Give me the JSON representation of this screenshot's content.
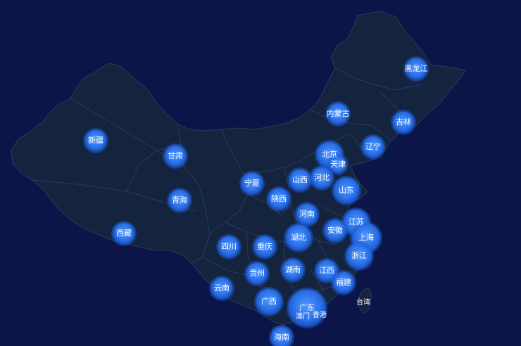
{
  "map": {
    "colors": {
      "background": "#0b1547",
      "land": "#14233e",
      "border": "#2b3b58",
      "bubble_outer": "#1d5fd8",
      "bubble_inner": "#4a90ff",
      "label": "#ffffff"
    },
    "provinces": [
      {
        "id": "heilongjiang",
        "name": "黑龙江",
        "size": "m"
      },
      {
        "id": "jilin",
        "name": "吉林",
        "size": "m"
      },
      {
        "id": "liaoning",
        "name": "辽宁",
        "size": "m"
      },
      {
        "id": "neimenggu",
        "name": "内蒙古",
        "size": "m"
      },
      {
        "id": "xinjiang",
        "name": "新疆",
        "size": "m"
      },
      {
        "id": "gansu",
        "name": "甘肃",
        "size": "m"
      },
      {
        "id": "beijing",
        "name": "北京",
        "size": "l"
      },
      {
        "id": "tianjin",
        "name": "天津",
        "size": "s"
      },
      {
        "id": "hebei",
        "name": "河北",
        "size": "m"
      },
      {
        "id": "shanxi",
        "name": "山西",
        "size": "m"
      },
      {
        "id": "ningxia",
        "name": "宁夏",
        "size": "m"
      },
      {
        "id": "shandong",
        "name": "山东",
        "size": "l"
      },
      {
        "id": "qinghai",
        "name": "青海",
        "size": "m"
      },
      {
        "id": "shaanxi",
        "name": "陕西",
        "size": "m"
      },
      {
        "id": "henan",
        "name": "河南",
        "size": "m"
      },
      {
        "id": "jiangsu",
        "name": "江苏",
        "size": "l"
      },
      {
        "id": "shanghai",
        "name": "上海",
        "size": "xl"
      },
      {
        "id": "anhui",
        "name": "安徽",
        "size": "m"
      },
      {
        "id": "xizang",
        "name": "西藏",
        "size": "m"
      },
      {
        "id": "sichuan",
        "name": "四川",
        "size": "m"
      },
      {
        "id": "chongqing",
        "name": "重庆",
        "size": "m"
      },
      {
        "id": "hubei",
        "name": "湖北",
        "size": "l"
      },
      {
        "id": "zhejiang",
        "name": "浙江",
        "size": "l"
      },
      {
        "id": "guizhou",
        "name": "贵州",
        "size": "m"
      },
      {
        "id": "hunan",
        "name": "湖南",
        "size": "m"
      },
      {
        "id": "jiangxi",
        "name": "江西",
        "size": "m"
      },
      {
        "id": "fujian",
        "name": "福建",
        "size": "m"
      },
      {
        "id": "yunnan",
        "name": "云南",
        "size": "m"
      },
      {
        "id": "guangxi",
        "name": "广西",
        "size": "l"
      },
      {
        "id": "guangdong",
        "name": "广东",
        "size": "xxl"
      },
      {
        "id": "aomen",
        "name": "澳门",
        "size": "none"
      },
      {
        "id": "xianggang",
        "name": "香港",
        "size": "none"
      },
      {
        "id": "hainan",
        "name": "海南",
        "size": "m"
      },
      {
        "id": "taiwan",
        "name": "台湾",
        "size": "none"
      }
    ]
  }
}
